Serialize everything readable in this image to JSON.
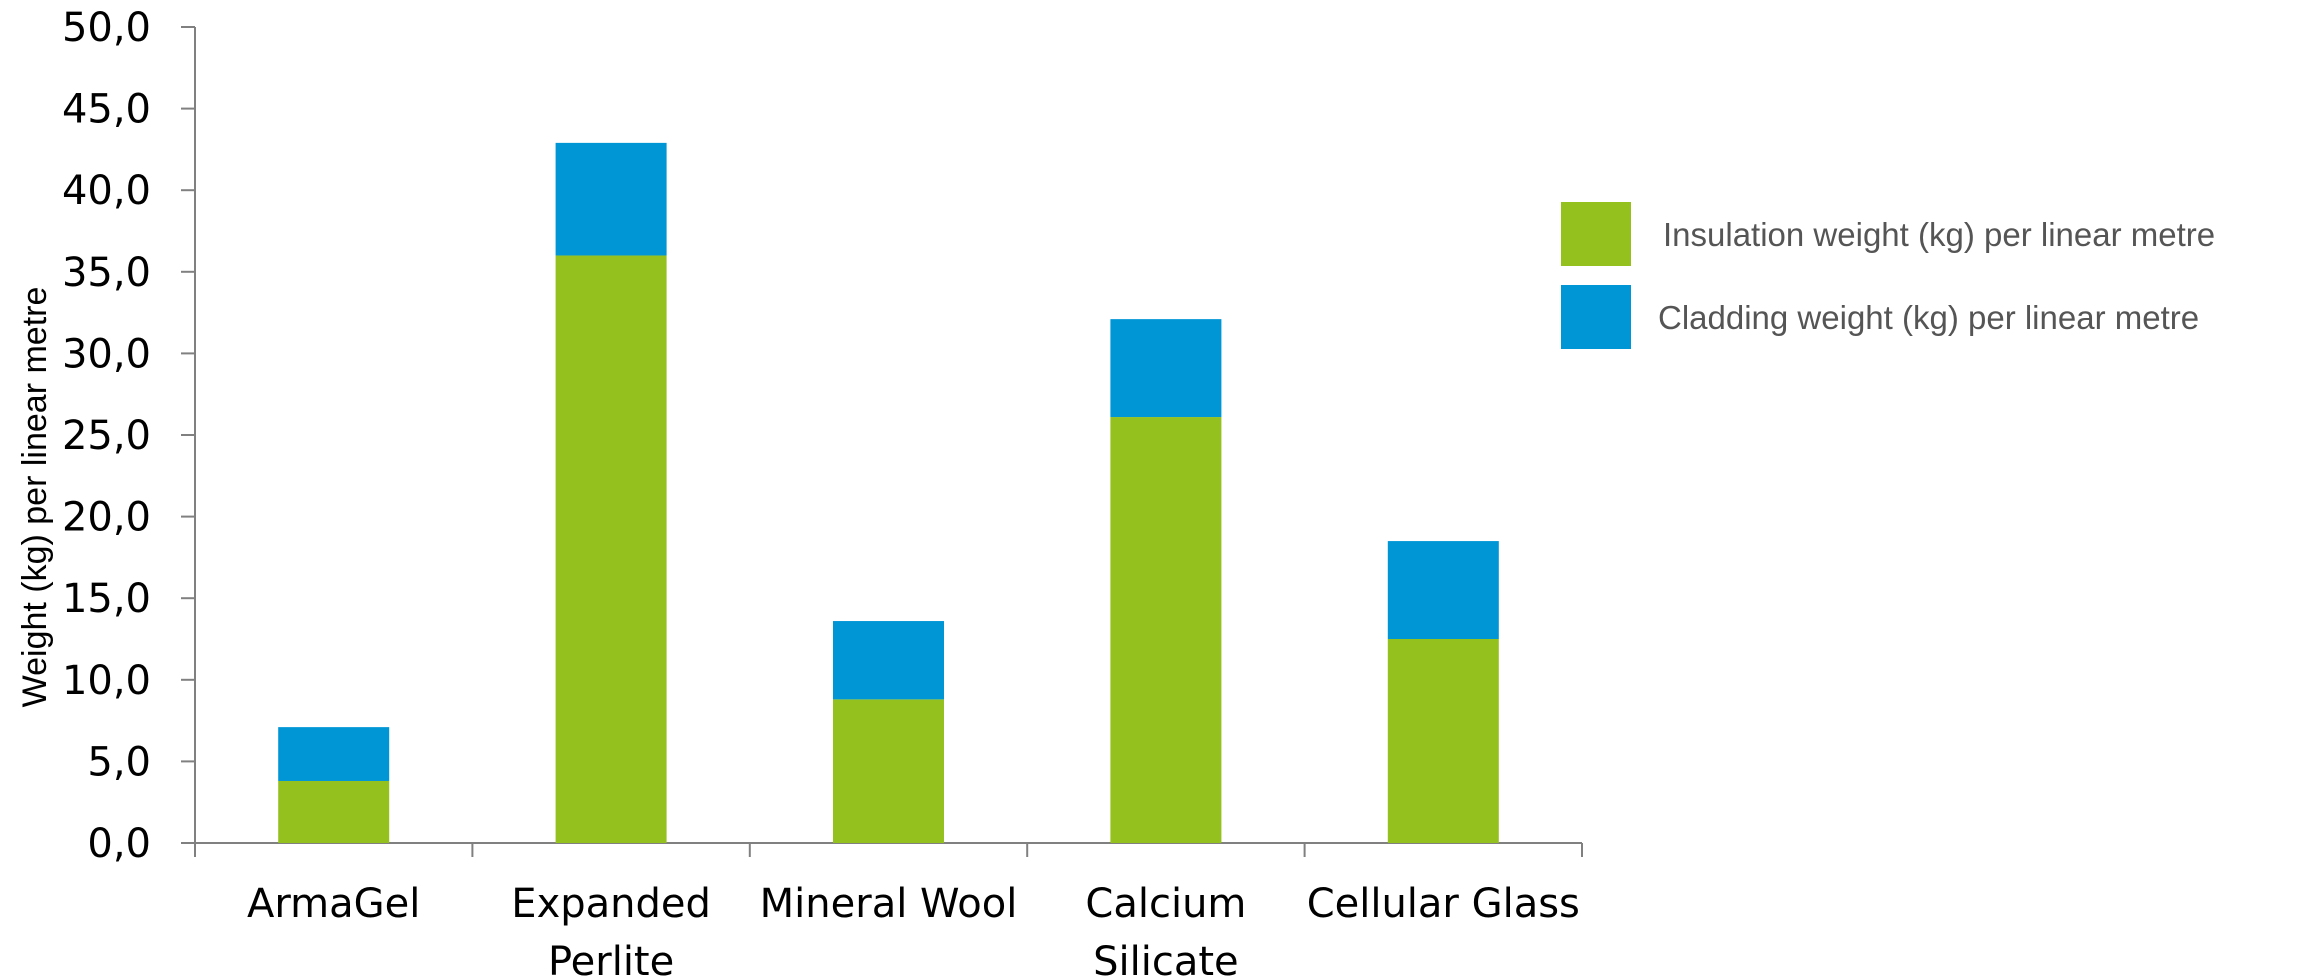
{
  "chart_data": {
    "type": "bar",
    "stacked": true,
    "categories": [
      [
        "ArmaGel"
      ],
      [
        "Expanded",
        "Perlite"
      ],
      [
        "Mineral Wool"
      ],
      [
        "Calcium",
        "Silicate"
      ],
      [
        "Cellular Glass"
      ]
    ],
    "series": [
      {
        "name": "Insulation weight (kg) per linear metre",
        "color": "#95c11f",
        "values": [
          3.8,
          36.0,
          8.8,
          26.1,
          12.5
        ]
      },
      {
        "name": "Cladding weight (kg) per linear metre",
        "color": "#0096d6",
        "values": [
          3.3,
          6.9,
          4.8,
          6.0,
          6.0
        ]
      }
    ],
    "ylabel": "Weight (kg) per  linear metre",
    "ylim": [
      0,
      50
    ],
    "yticks": [
      "0,0",
      "5,0",
      "10,0",
      "15,0",
      "20,0",
      "25,0",
      "30,0",
      "35,0",
      "40,0",
      "45,0",
      "50,0"
    ],
    "legend_position": "right",
    "grid": false,
    "axis_color": "#808080"
  }
}
